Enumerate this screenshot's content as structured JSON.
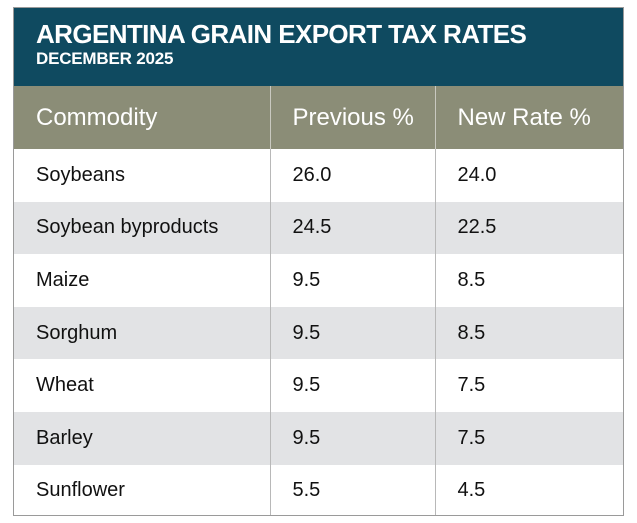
{
  "header": {
    "title": "ARGENTINA GRAIN EXPORT TAX RATES",
    "subtitle": "DECEMBER 2025"
  },
  "table": {
    "columns": [
      "Commodity",
      "Previous %",
      "New Rate %"
    ],
    "rows": [
      [
        "Soybeans",
        "26.0",
        "24.0"
      ],
      [
        "Soybean byproducts",
        "24.5",
        "22.5"
      ],
      [
        "Maize",
        "9.5",
        "8.5"
      ],
      [
        "Sorghum",
        "9.5",
        "8.5"
      ],
      [
        "Wheat",
        "9.5",
        "7.5"
      ],
      [
        "Barley",
        "9.5",
        "7.5"
      ],
      [
        "Sunflower",
        "5.5",
        "4.5"
      ]
    ]
  }
}
